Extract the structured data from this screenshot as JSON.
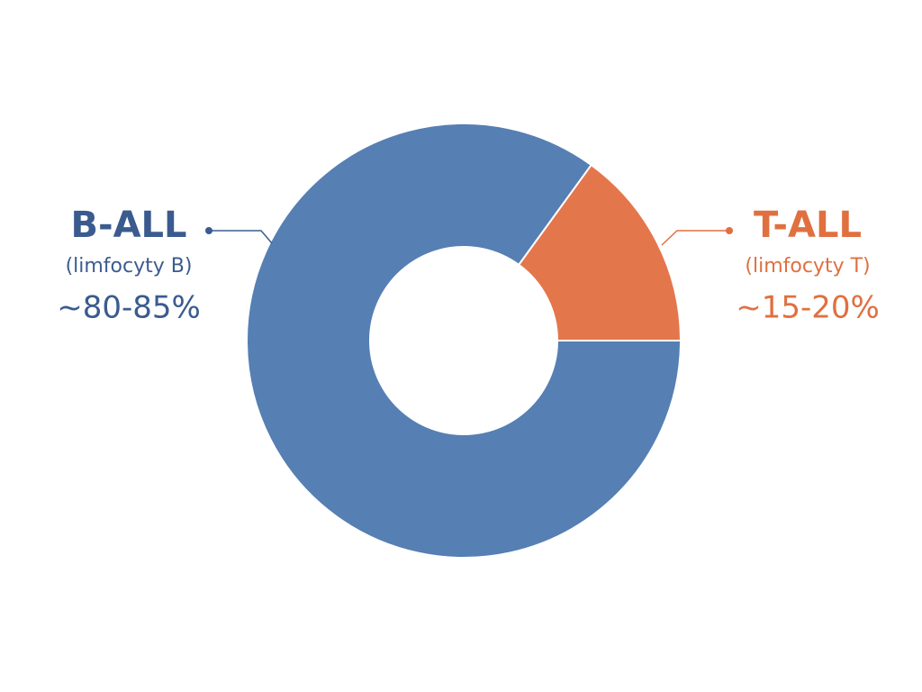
{
  "chart_data": {
    "type": "donut",
    "categories": [
      "B-ALL",
      "T-ALL"
    ],
    "descriptions": [
      "(limfocyty B)",
      "(limfocyty T)"
    ],
    "values": [
      85,
      15
    ],
    "value_labels": [
      "~80-85%",
      "~15-20%"
    ],
    "colors": [
      "#567fb3",
      "#e4764c"
    ],
    "label_colors": [
      "#3b5b8f",
      "#e0703f"
    ]
  }
}
